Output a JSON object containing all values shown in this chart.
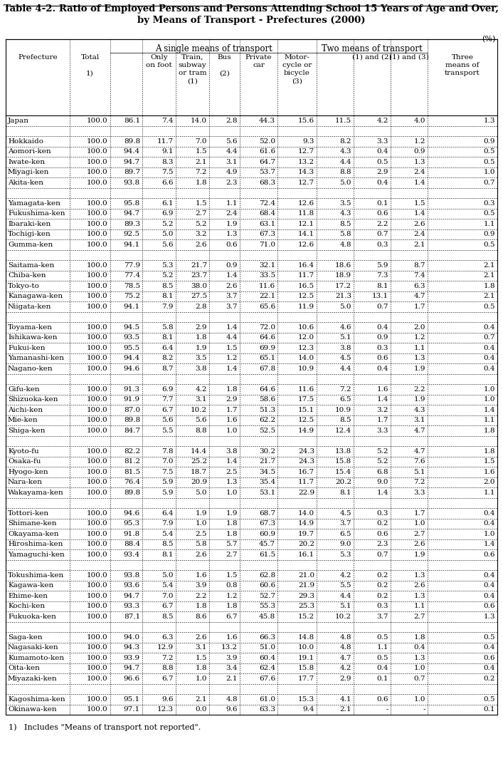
{
  "title_line1": "Table 4-2. Ratio of Employed Persons and Persons Attending School 15 Years of Age and Over,",
  "title_line2": "by Means of Transport - Prefectures (2000)",
  "footnote": "1)   Includes \"Means of transport not reported\".",
  "unit_label": "(%)",
  "col_labels": [
    "Prefecture",
    "Total\n\n1)",
    "",
    "Only\non foot",
    "Train,\nsubway\nor tram\n(1)",
    "Bus\n\n(2)",
    "Private\ncar",
    "Motor-\ncycle or\nbicycle\n(3)",
    "",
    "(1) and (2)",
    "(1) and (3)",
    "Three\nmeans of\ntransport"
  ],
  "group1_label": "A single means of transport",
  "group2_label": "Two means of transport",
  "rows": [
    [
      "Japan",
      "100.0",
      "86.1",
      "7.4",
      "14.0",
      "2.8",
      "44.3",
      "15.6",
      "11.5",
      "4.2",
      "4.0",
      "1.3"
    ],
    [
      "",
      "",
      "",
      "",
      "",
      "",
      "",
      "",
      "",
      "",
      "",
      ""
    ],
    [
      "Hokkaido",
      "100.0",
      "89.8",
      "11.7",
      "7.0",
      "5.6",
      "52.0",
      "9.3",
      "8.2",
      "3.3",
      "1.2",
      "0.9"
    ],
    [
      "Aomori-ken",
      "100.0",
      "94.4",
      "9.1",
      "1.5",
      "4.4",
      "61.6",
      "12.7",
      "4.3",
      "0.4",
      "0.9",
      "0.5"
    ],
    [
      "Iwate-ken",
      "100.0",
      "94.7",
      "8.3",
      "2.1",
      "3.1",
      "64.7",
      "13.2",
      "4.4",
      "0.5",
      "1.3",
      "0.5"
    ],
    [
      "Miyagi-ken",
      "100.0",
      "89.7",
      "7.5",
      "7.2",
      "4.9",
      "53.7",
      "14.3",
      "8.8",
      "2.9",
      "2.4",
      "1.0"
    ],
    [
      "Akita-ken",
      "100.0",
      "93.8",
      "6.6",
      "1.8",
      "2.3",
      "68.3",
      "12.7",
      "5.0",
      "0.4",
      "1.4",
      "0.7"
    ],
    [
      "",
      "",
      "",
      "",
      "",
      "",
      "",
      "",
      "",
      "",
      "",
      ""
    ],
    [
      "Yamagata-ken",
      "100.0",
      "95.8",
      "6.1",
      "1.5",
      "1.1",
      "72.4",
      "12.6",
      "3.5",
      "0.1",
      "1.5",
      "0.3"
    ],
    [
      "Fukushima-ken",
      "100.0",
      "94.7",
      "6.9",
      "2.7",
      "2.4",
      "68.4",
      "11.8",
      "4.3",
      "0.6",
      "1.4",
      "0.5"
    ],
    [
      "Ibaraki-ken",
      "100.0",
      "89.3",
      "5.2",
      "5.2",
      "1.9",
      "63.1",
      "12.1",
      "8.5",
      "2.2",
      "2.6",
      "1.1"
    ],
    [
      "Tochigi-ken",
      "100.0",
      "92.5",
      "5.0",
      "3.2",
      "1.3",
      "67.3",
      "14.1",
      "5.8",
      "0.7",
      "2.4",
      "0.9"
    ],
    [
      "Gumma-ken",
      "100.0",
      "94.1",
      "5.6",
      "2.6",
      "0.6",
      "71.0",
      "12.6",
      "4.8",
      "0.3",
      "2.1",
      "0.5"
    ],
    [
      "",
      "",
      "",
      "",
      "",
      "",
      "",
      "",
      "",
      "",
      "",
      ""
    ],
    [
      "Saitama-ken",
      "100.0",
      "77.9",
      "5.3",
      "21.7",
      "0.9",
      "32.1",
      "16.4",
      "18.6",
      "5.9",
      "8.7",
      "2.1"
    ],
    [
      "Chiba-ken",
      "100.0",
      "77.4",
      "5.2",
      "23.7",
      "1.4",
      "33.5",
      "11.7",
      "18.9",
      "7.3",
      "7.4",
      "2.1"
    ],
    [
      "Tokyo-to",
      "100.0",
      "78.5",
      "8.5",
      "38.0",
      "2.6",
      "11.6",
      "16.5",
      "17.2",
      "8.1",
      "6.3",
      "1.8"
    ],
    [
      "Kanagawa-ken",
      "100.0",
      "75.2",
      "8.1",
      "27.5",
      "3.7",
      "22.1",
      "12.5",
      "21.3",
      "13.1",
      "4.7",
      "2.1"
    ],
    [
      "Niigata-ken",
      "100.0",
      "94.1",
      "7.9",
      "2.8",
      "3.7",
      "65.6",
      "11.9",
      "5.0",
      "0.7",
      "1.7",
      "0.5"
    ],
    [
      "",
      "",
      "",
      "",
      "",
      "",
      "",
      "",
      "",
      "",
      "",
      ""
    ],
    [
      "Toyama-ken",
      "100.0",
      "94.5",
      "5.8",
      "2.9",
      "1.4",
      "72.0",
      "10.6",
      "4.6",
      "0.4",
      "2.0",
      "0.4"
    ],
    [
      "Ishikawa-ken",
      "100.0",
      "93.5",
      "8.1",
      "1.8",
      "4.4",
      "64.6",
      "12.0",
      "5.1",
      "0.9",
      "1.2",
      "0.7"
    ],
    [
      "Fukui-ken",
      "100.0",
      "95.5",
      "6.4",
      "1.9",
      "1.5",
      "69.9",
      "12.3",
      "3.8",
      "0.3",
      "1.1",
      "0.4"
    ],
    [
      "Yamanashi-ken",
      "100.0",
      "94.4",
      "8.2",
      "3.5",
      "1.2",
      "65.1",
      "14.0",
      "4.5",
      "0.6",
      "1.3",
      "0.4"
    ],
    [
      "Nagano-ken",
      "100.0",
      "94.6",
      "8.7",
      "3.8",
      "1.4",
      "67.8",
      "10.9",
      "4.4",
      "0.4",
      "1.9",
      "0.4"
    ],
    [
      "",
      "",
      "",
      "",
      "",
      "",
      "",
      "",
      "",
      "",
      "",
      ""
    ],
    [
      "Gifu-ken",
      "100.0",
      "91.3",
      "6.9",
      "4.2",
      "1.8",
      "64.6",
      "11.6",
      "7.2",
      "1.6",
      "2.2",
      "1.0"
    ],
    [
      "Shizuoka-ken",
      "100.0",
      "91.9",
      "7.7",
      "3.1",
      "2.9",
      "58.6",
      "17.5",
      "6.5",
      "1.4",
      "1.9",
      "1.0"
    ],
    [
      "Aichi-ken",
      "100.0",
      "87.0",
      "6.7",
      "10.2",
      "1.7",
      "51.3",
      "15.1",
      "10.9",
      "3.2",
      "4.3",
      "1.4"
    ],
    [
      "Mie-ken",
      "100.0",
      "89.8",
      "5.6",
      "5.6",
      "1.6",
      "62.2",
      "12.5",
      "8.5",
      "1.7",
      "3.1",
      "1.1"
    ],
    [
      "Shiga-ken",
      "100.0",
      "84.7",
      "5.5",
      "8.8",
      "1.0",
      "52.5",
      "14.9",
      "12.4",
      "3.3",
      "4.7",
      "1.8"
    ],
    [
      "",
      "",
      "",
      "",
      "",
      "",
      "",
      "",
      "",
      "",
      "",
      ""
    ],
    [
      "Kyoto-fu",
      "100.0",
      "82.2",
      "7.8",
      "14.4",
      "3.8",
      "30.2",
      "24.3",
      "13.8",
      "5.2",
      "4.7",
      "1.8"
    ],
    [
      "Osaka-fu",
      "100.0",
      "81.2",
      "7.0",
      "25.2",
      "1.4",
      "21.7",
      "24.3",
      "15.8",
      "5.2",
      "7.6",
      "1.5"
    ],
    [
      "Hyogo-ken",
      "100.0",
      "81.5",
      "7.5",
      "18.7",
      "2.5",
      "34.5",
      "16.7",
      "15.4",
      "6.8",
      "5.1",
      "1.6"
    ],
    [
      "Nara-ken",
      "100.0",
      "76.4",
      "5.9",
      "20.9",
      "1.3",
      "35.4",
      "11.7",
      "20.2",
      "9.0",
      "7.2",
      "2.0"
    ],
    [
      "Wakayama-ken",
      "100.0",
      "89.8",
      "5.9",
      "5.0",
      "1.0",
      "53.1",
      "22.9",
      "8.1",
      "1.4",
      "3.3",
      "1.1"
    ],
    [
      "",
      "",
      "",
      "",
      "",
      "",
      "",
      "",
      "",
      "",
      "",
      ""
    ],
    [
      "Tottori-ken",
      "100.0",
      "94.6",
      "6.4",
      "1.9",
      "1.9",
      "68.7",
      "14.0",
      "4.5",
      "0.3",
      "1.7",
      "0.4"
    ],
    [
      "Shimane-ken",
      "100.0",
      "95.3",
      "7.9",
      "1.0",
      "1.8",
      "67.3",
      "14.9",
      "3.7",
      "0.2",
      "1.0",
      "0.4"
    ],
    [
      "Okayama-ken",
      "100.0",
      "91.8",
      "5.4",
      "2.5",
      "1.8",
      "60.9",
      "19.7",
      "6.5",
      "0.6",
      "2.7",
      "1.0"
    ],
    [
      "Hiroshima-ken",
      "100.0",
      "88.4",
      "8.5",
      "5.8",
      "5.7",
      "45.7",
      "20.2",
      "9.0",
      "2.3",
      "2.6",
      "1.4"
    ],
    [
      "Yamaguchi-ken",
      "100.0",
      "93.4",
      "8.1",
      "2.6",
      "2.7",
      "61.5",
      "16.1",
      "5.3",
      "0.7",
      "1.9",
      "0.6"
    ],
    [
      "",
      "",
      "",
      "",
      "",
      "",
      "",
      "",
      "",
      "",
      "",
      ""
    ],
    [
      "Tokushima-ken",
      "100.0",
      "93.8",
      "5.0",
      "1.6",
      "1.5",
      "62.8",
      "21.0",
      "4.2",
      "0.2",
      "1.3",
      "0.4"
    ],
    [
      "Kagawa-ken",
      "100.0",
      "93.6",
      "5.4",
      "3.9",
      "0.8",
      "60.6",
      "21.9",
      "5.5",
      "0.2",
      "2.6",
      "0.4"
    ],
    [
      "Ehime-ken",
      "100.0",
      "94.7",
      "7.0",
      "2.2",
      "1.2",
      "52.7",
      "29.3",
      "4.4",
      "0.2",
      "1.3",
      "0.4"
    ],
    [
      "Kochi-ken",
      "100.0",
      "93.3",
      "6.7",
      "1.8",
      "1.8",
      "55.3",
      "25.3",
      "5.1",
      "0.3",
      "1.1",
      "0.6"
    ],
    [
      "Fukuoka-ken",
      "100.0",
      "87.1",
      "8.5",
      "8.6",
      "6.7",
      "45.8",
      "15.2",
      "10.2",
      "3.7",
      "2.7",
      "1.3"
    ],
    [
      "",
      "",
      "",
      "",
      "",
      "",
      "",
      "",
      "",
      "",
      "",
      ""
    ],
    [
      "Saga-ken",
      "100.0",
      "94.0",
      "6.3",
      "2.6",
      "1.6",
      "66.3",
      "14.8",
      "4.8",
      "0.5",
      "1.8",
      "0.5"
    ],
    [
      "Nagasaki-ken",
      "100.0",
      "94.3",
      "12.9",
      "3.1",
      "13.2",
      "51.0",
      "10.0",
      "4.8",
      "1.1",
      "0.4",
      "0.4"
    ],
    [
      "Kumamoto-ken",
      "100.0",
      "93.9",
      "7.2",
      "1.5",
      "3.9",
      "60.4",
      "19.1",
      "4.7",
      "0.5",
      "1.3",
      "0.6"
    ],
    [
      "Oita-ken",
      "100.0",
      "94.7",
      "8.8",
      "1.8",
      "3.4",
      "62.4",
      "15.8",
      "4.2",
      "0.4",
      "1.0",
      "0.4"
    ],
    [
      "Miyazaki-ken",
      "100.0",
      "96.6",
      "6.7",
      "1.0",
      "2.1",
      "67.6",
      "17.7",
      "2.9",
      "0.1",
      "0.7",
      "0.2"
    ],
    [
      "",
      "",
      "",
      "",
      "",
      "",
      "",
      "",
      "",
      "",
      "",
      ""
    ],
    [
      "Kagoshima-ken",
      "100.0",
      "95.1",
      "9.6",
      "2.1",
      "4.8",
      "61.0",
      "15.3",
      "4.1",
      "0.6",
      "1.0",
      "0.5"
    ],
    [
      "Okinawa-ken",
      "100.0",
      "97.1",
      "12.3",
      "0.0",
      "9.6",
      "63.3",
      "9.4",
      "2.1",
      "-",
      "-",
      "0.1"
    ]
  ]
}
